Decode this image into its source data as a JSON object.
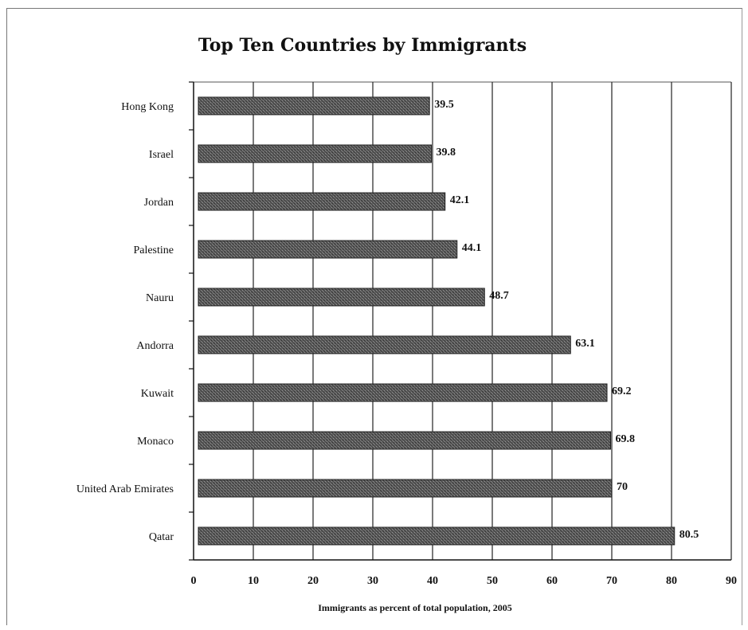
{
  "chart_data": {
    "type": "bar",
    "orientation": "horizontal",
    "title": "Top Ten Countries by Immigrants",
    "xlabel": "Immigrants as percent of total population, 2005",
    "ylabel": "",
    "xlim": [
      0,
      90
    ],
    "xticks": [
      "0",
      "10",
      "20",
      "30",
      "40",
      "50",
      "60",
      "70",
      "80",
      "90"
    ],
    "grid": "vertical",
    "legend": "none",
    "categories": [
      "Hong Kong",
      "Israel",
      "Jordan",
      "Palestine",
      "Nauru",
      "Andorra",
      "Kuwait",
      "Monaco",
      "United Arab Emirates",
      "Qatar"
    ],
    "values": [
      39.5,
      39.8,
      42.1,
      44.1,
      48.7,
      63.1,
      69.2,
      69.8,
      70,
      80.5
    ],
    "value_labels": [
      "39.5",
      "39.8",
      "42.1",
      "44.1",
      "48.7",
      "63.1",
      "69.2",
      "69.8",
      "70",
      "80.5"
    ],
    "colors": {
      "bar": "#4d4d4d",
      "grid": "#222222"
    }
  }
}
